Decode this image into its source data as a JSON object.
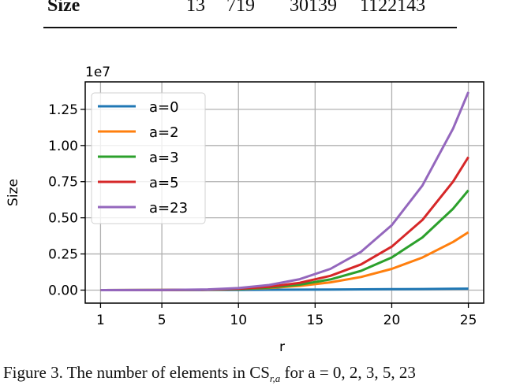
{
  "table": {
    "row_label": "Size",
    "values": [
      "13",
      "719",
      "30139",
      "1122143"
    ]
  },
  "caption": "Figure 3. The number of elements in CS",
  "caption_sub": "r,a",
  "caption_rest": " for a = 0, 2, 3, 5, 23",
  "chart_data": {
    "type": "line",
    "title": "",
    "xlabel": "r",
    "ylabel": "Size",
    "y_scale_label": "1e7",
    "xlim": [
      0,
      26
    ],
    "ylim": [
      -0.09,
      1.44
    ],
    "y_unit": 10000000,
    "xticks": [
      1,
      5,
      10,
      15,
      20,
      25
    ],
    "xtick_labels": [
      "1",
      "5",
      "10",
      "15",
      "20",
      "25"
    ],
    "yticks": [
      0,
      0.25,
      0.5,
      0.75,
      1.0,
      1.25
    ],
    "ytick_labels": [
      "0.00",
      "0.25",
      "0.50",
      "0.75",
      "1.00",
      "1.25"
    ],
    "grid": true,
    "legend_position": "top-left",
    "x": [
      1,
      5,
      8,
      10,
      12,
      14,
      16,
      18,
      20,
      22,
      24,
      25
    ],
    "series": [
      {
        "name": "a=0",
        "color": "#1f77b4",
        "values": [
          0,
          0.0004,
          0.001,
          0.0016,
          0.0023,
          0.0031,
          0.0041,
          0.0052,
          0.0064,
          0.0077,
          0.0092,
          0.01
        ]
      },
      {
        "name": "a=2",
        "color": "#ff7f0e",
        "values": [
          0,
          0.0003,
          0.0024,
          0.0065,
          0.0147,
          0.0295,
          0.054,
          0.091,
          0.147,
          0.225,
          0.333,
          0.4
        ]
      },
      {
        "name": "a=3",
        "color": "#2ca02c",
        "values": [
          0,
          0.0002,
          0.0023,
          0.0071,
          0.0176,
          0.038,
          0.074,
          0.133,
          0.226,
          0.364,
          0.563,
          0.69
        ]
      },
      {
        "name": "a=5",
        "color": "#d62728",
        "values": [
          0,
          0.0003,
          0.0031,
          0.0094,
          0.0235,
          0.0507,
          0.0987,
          0.178,
          0.301,
          0.485,
          0.75,
          0.92
        ]
      },
      {
        "name": "a=23",
        "color": "#9467bd",
        "values": [
          0,
          0.0004,
          0.0046,
          0.014,
          0.035,
          0.0755,
          0.147,
          0.265,
          0.449,
          0.723,
          1.117,
          1.37
        ]
      }
    ]
  }
}
